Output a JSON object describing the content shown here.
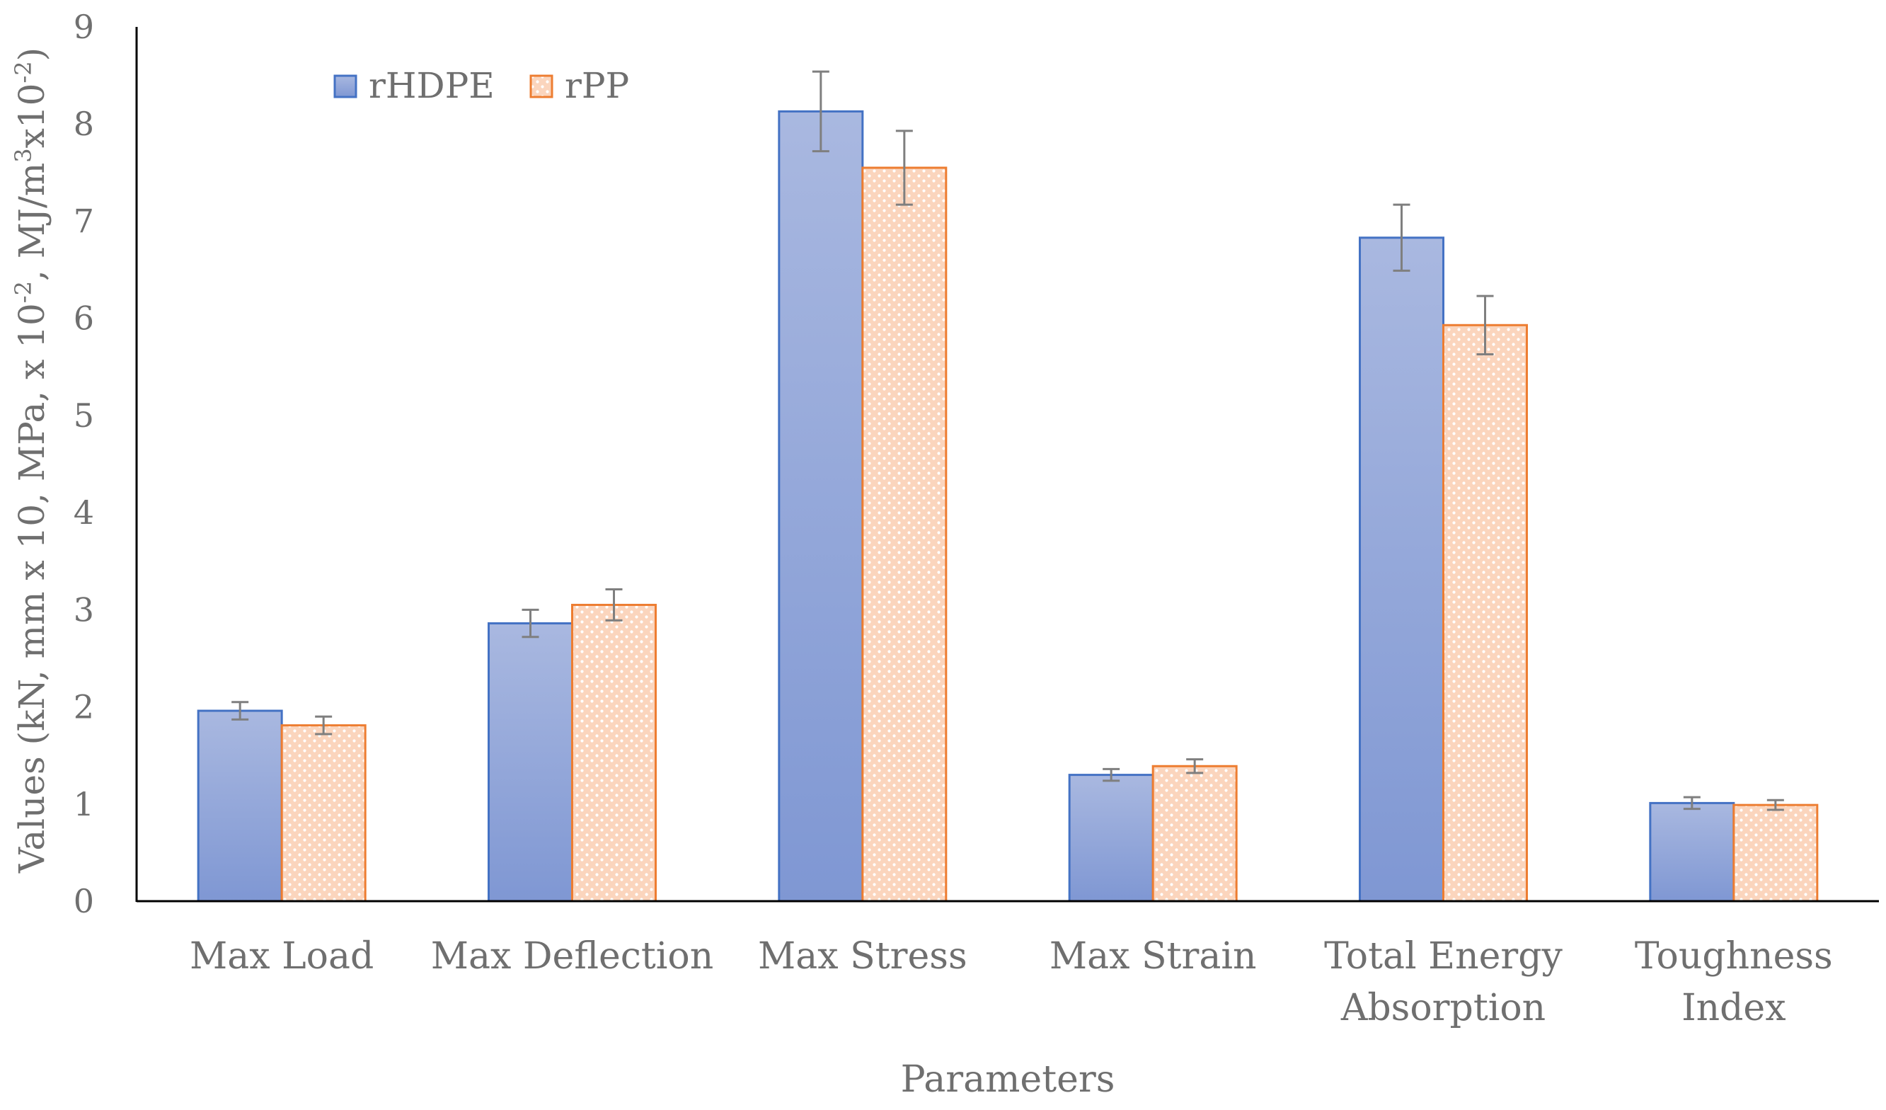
{
  "chart_data": {
    "type": "bar",
    "title": "",
    "xlabel": "Parameters",
    "ylabel": "Values (kN, mm x 10, MPa, x 10",
    "ylabel_sup1": "-2",
    "ylabel_mid": ", MJ/m",
    "ylabel_sup2": "3",
    "ylabel_mid2": "x10",
    "ylabel_sup3": "-2",
    "ylabel_end": ")",
    "ylim": [
      0,
      9
    ],
    "yticks": [
      "0",
      "1",
      "2",
      "3",
      "4",
      "5",
      "6",
      "7",
      "8",
      "9"
    ],
    "categories": [
      [
        "Max Load"
      ],
      [
        "Max Deflection"
      ],
      [
        "Max Stress"
      ],
      [
        "Max Strain"
      ],
      [
        "Total Energy",
        "Absorption"
      ],
      [
        "Toughness",
        "Index"
      ]
    ],
    "series": [
      {
        "name": "rHDPE",
        "values": [
          1.96,
          2.86,
          8.13,
          1.3,
          6.83,
          1.01
        ],
        "errors": [
          0.09,
          0.14,
          0.41,
          0.06,
          0.34,
          0.06
        ],
        "color": "#4472c4",
        "fill_top": "#a9b8e0",
        "fill_bottom": "#7f97d3"
      },
      {
        "name": "rPP",
        "values": [
          1.81,
          3.05,
          7.55,
          1.39,
          5.93,
          0.99
        ],
        "errors": [
          0.09,
          0.16,
          0.38,
          0.07,
          0.3,
          0.05
        ],
        "color": "#ed7d31",
        "fill": "#fbd5bd",
        "dot": "#ffffff"
      }
    ],
    "legend": "top-left",
    "error_bar_color": "#7f7f7f",
    "axis_color": "#000000"
  }
}
